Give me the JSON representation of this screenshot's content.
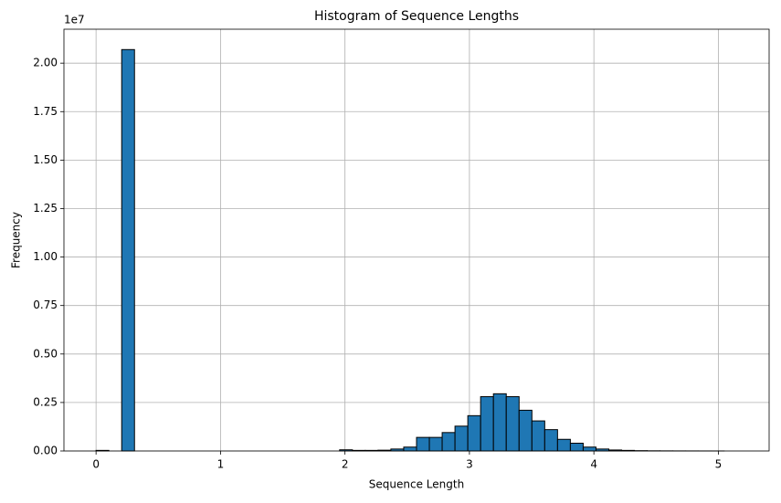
{
  "chart_data": {
    "type": "histogram",
    "title": "Histogram of Sequence Lengths",
    "xlabel": "Sequence Length",
    "ylabel": "Frequency",
    "y_offset_label": "1e7",
    "bins": [
      0,
      0.103,
      0.206,
      0.309,
      0.412,
      0.515,
      0.618,
      0.721,
      0.824,
      0.927,
      1.03,
      1.133,
      1.236,
      1.339,
      1.442,
      1.545,
      1.648,
      1.751,
      1.854,
      1.957,
      2.06,
      2.163,
      2.266,
      2.369,
      2.472,
      2.575,
      2.678,
      2.781,
      2.884,
      2.987,
      3.09,
      3.193,
      3.296,
      3.399,
      3.502,
      3.605,
      3.708,
      3.811,
      3.914,
      4.017,
      4.12,
      4.223,
      4.326,
      4.429,
      4.532,
      4.635,
      4.738,
      4.841,
      4.944,
      5.047,
      5.15
    ],
    "counts": [
      30000,
      0,
      20700000,
      0,
      0,
      0,
      0,
      0,
      0,
      0,
      0,
      0,
      0,
      0,
      0,
      0,
      0,
      0,
      0,
      60000,
      30000,
      30000,
      40000,
      100000,
      200000,
      700000,
      700000,
      950000,
      1280000,
      1820000,
      2800000,
      2950000,
      2800000,
      2100000,
      1550000,
      1100000,
      600000,
      400000,
      200000,
      100000,
      50000,
      30000,
      15000,
      8000,
      5000,
      3000,
      2000,
      1000,
      500,
      0
    ],
    "color": "#1f77b4",
    "edgecolor": "#000000",
    "grid": true,
    "xlim": [
      -0.258,
      5.408
    ],
    "xticks": [
      0,
      1,
      2,
      3,
      4,
      5
    ],
    "ylim": [
      0,
      21750000
    ],
    "yticks": [
      {
        "value": 0,
        "label": "0.00"
      },
      {
        "value": 2500000,
        "label": "0.25"
      },
      {
        "value": 5000000,
        "label": "0.50"
      },
      {
        "value": 7500000,
        "label": "0.75"
      },
      {
        "value": 10000000,
        "label": "1.00"
      },
      {
        "value": 12500000,
        "label": "1.25"
      },
      {
        "value": 15000000,
        "label": "1.50"
      },
      {
        "value": 17500000,
        "label": "1.75"
      },
      {
        "value": 20000000,
        "label": "2.00"
      }
    ]
  }
}
